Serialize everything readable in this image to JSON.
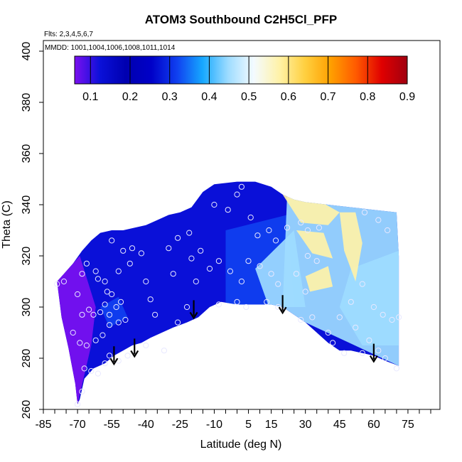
{
  "chart_data": {
    "type": "heatmap",
    "title": "ATOM3 Southbound C2H5Cl_PFP",
    "subtitle_flights": "Flts: 2,3,4,5,6,7",
    "subtitle_dates": "MMDD: 1001,1004,1006,1008,1011,1014",
    "xlabel": "Latitude (deg N)",
    "ylabel": "Theta (C)",
    "xlim": [
      -85,
      85
    ],
    "ylim": [
      260,
      400
    ],
    "x_ticks": [
      -85,
      -70,
      -55,
      -40,
      -25,
      -10,
      5,
      15,
      30,
      45,
      60,
      75
    ],
    "x_tick_labels": [
      "-85",
      "-70",
      "-55",
      "-40",
      "-25",
      "-10",
      "5",
      "15",
      "30",
      "45",
      "60",
      "75"
    ],
    "y_ticks": [
      260,
      280,
      300,
      320,
      340,
      360,
      380,
      400
    ],
    "y_tick_labels": [
      "260",
      "280",
      "300",
      "320",
      "340",
      "360",
      "380",
      "400"
    ],
    "colorbar": {
      "range": [
        0.06,
        0.9
      ],
      "ticks": [
        0.1,
        0.2,
        0.3,
        0.4,
        0.5,
        0.6,
        0.7,
        0.8,
        0.9
      ],
      "tick_labels": [
        "0.1",
        "0.2",
        "0.3",
        "0.4",
        "0.5",
        "0.6",
        "0.7",
        "0.8",
        "0.9"
      ],
      "colors": [
        "#7b10f0",
        "#0a10d8",
        "#0000b0",
        "#0000c8",
        "#1040f0",
        "#16a8ff",
        "#9edcff",
        "#f4fbff",
        "#fff2a8",
        "#ffd040",
        "#ffa000",
        "#ff5a00",
        "#e00000",
        "#a00010"
      ]
    },
    "grid": false,
    "upper_boundary": [
      [
        -79,
        310
      ],
      [
        -76,
        313
      ],
      [
        -72,
        317
      ],
      [
        -68,
        322
      ],
      [
        -64,
        326
      ],
      [
        -60,
        329
      ],
      [
        -55,
        330
      ],
      [
        -50,
        330
      ],
      [
        -45,
        331
      ],
      [
        -40,
        332
      ],
      [
        -35,
        334
      ],
      [
        -30,
        336
      ],
      [
        -25,
        337
      ],
      [
        -20,
        339
      ],
      [
        -15,
        345
      ],
      [
        -10,
        348
      ],
      [
        0,
        349
      ],
      [
        8,
        349
      ],
      [
        15,
        347
      ],
      [
        20,
        344
      ],
      [
        25,
        342
      ],
      [
        30,
        341
      ],
      [
        40,
        340
      ],
      [
        50,
        339
      ],
      [
        60,
        338
      ],
      [
        70,
        337
      ],
      [
        71,
        320
      ],
      [
        71,
        300
      ],
      [
        71,
        280
      ]
    ],
    "lower_boundary": [
      [
        -79,
        310
      ],
      [
        -77,
        296
      ],
      [
        -74,
        284
      ],
      [
        -71,
        270
      ],
      [
        -70,
        262
      ],
      [
        -69,
        264
      ],
      [
        -67,
        272
      ],
      [
        -63,
        276
      ],
      [
        -58,
        278
      ],
      [
        -54,
        281
      ],
      [
        -50,
        283
      ],
      [
        -46,
        285
      ],
      [
        -42,
        286
      ],
      [
        -38,
        288
      ],
      [
        -33,
        290
      ],
      [
        -28,
        292
      ],
      [
        -22,
        294
      ],
      [
        -17,
        296
      ],
      [
        -12,
        300
      ],
      [
        -7,
        302
      ],
      [
        0,
        301
      ],
      [
        8,
        301
      ],
      [
        15,
        301
      ],
      [
        20,
        300
      ],
      [
        25,
        297
      ],
      [
        30,
        294
      ],
      [
        35,
        290
      ],
      [
        40,
        286
      ],
      [
        45,
        283
      ],
      [
        50,
        283
      ],
      [
        55,
        282
      ],
      [
        60,
        281
      ],
      [
        65,
        279
      ],
      [
        71,
        277
      ]
    ],
    "arrows": [
      {
        "lat": -54,
        "theta": 278
      },
      {
        "lat": -45,
        "theta": 281
      },
      {
        "lat": -19,
        "theta": 296
      },
      {
        "lat": 20,
        "theta": 298
      },
      {
        "lat": 60,
        "theta": 279
      }
    ],
    "field_regions": [
      {
        "name": "south-purple",
        "value": 0.07,
        "points": [
          [
            -79,
            310
          ],
          [
            -69,
            320
          ],
          [
            -62,
            300
          ],
          [
            -64,
            285
          ],
          [
            -70,
            262
          ],
          [
            -74,
            284
          ],
          [
            -77,
            296
          ]
        ]
      },
      {
        "name": "south-blue-streak",
        "value": 0.33,
        "points": [
          [
            -60,
            300
          ],
          [
            -52,
            304
          ],
          [
            -48,
            296
          ],
          [
            -56,
            292
          ]
        ]
      },
      {
        "name": "tropics-blue",
        "value": 0.33,
        "points": [
          [
            -5,
            330
          ],
          [
            22,
            336
          ],
          [
            25,
            300
          ],
          [
            0,
            301
          ],
          [
            -5,
            301
          ]
        ]
      },
      {
        "name": "tropics-light",
        "value": 0.42,
        "points": [
          [
            8,
            315
          ],
          [
            25,
            330
          ],
          [
            30,
            300
          ],
          [
            14,
            300
          ]
        ]
      },
      {
        "name": "north-light",
        "value": 0.42,
        "points": [
          [
            22,
            344
          ],
          [
            71,
            337
          ],
          [
            71,
            277
          ],
          [
            30,
            294
          ],
          [
            20,
            300
          ]
        ]
      },
      {
        "name": "north-bright",
        "value": 0.48,
        "points": [
          [
            50,
            315
          ],
          [
            71,
            322
          ],
          [
            71,
            285
          ],
          [
            55,
            285
          ],
          [
            45,
            300
          ]
        ]
      },
      {
        "name": "north-yellow-top",
        "value": 0.58,
        "points": [
          [
            20,
            344
          ],
          [
            35,
            342
          ],
          [
            45,
            337
          ],
          [
            40,
            332
          ],
          [
            28,
            333
          ]
        ]
      },
      {
        "name": "north-yellow-band-1",
        "value": 0.58,
        "points": [
          [
            26,
            330
          ],
          [
            38,
            329
          ],
          [
            42,
            319
          ],
          [
            33,
            321
          ]
        ]
      },
      {
        "name": "north-yellow-band-2",
        "value": 0.58,
        "points": [
          [
            30,
            312
          ],
          [
            40,
            316
          ],
          [
            42,
            308
          ],
          [
            32,
            306
          ]
        ]
      },
      {
        "name": "north-yellow-column",
        "value": 0.6,
        "points": [
          [
            45,
            337
          ],
          [
            52,
            337
          ],
          [
            55,
            325
          ],
          [
            52,
            310
          ],
          [
            47,
            322
          ]
        ]
      }
    ],
    "observations": [
      [
        -79,
        309
      ],
      [
        -76,
        310
      ],
      [
        -70,
        305
      ],
      [
        -68,
        313
      ],
      [
        -66,
        317
      ],
      [
        -62,
        314
      ],
      [
        -61,
        311
      ],
      [
        -58,
        310
      ],
      [
        -57,
        306
      ],
      [
        -65,
        299
      ],
      [
        -68,
        297
      ],
      [
        -63,
        297
      ],
      [
        -60,
        298
      ],
      [
        -56,
        297
      ],
      [
        -53,
        300
      ],
      [
        -51,
        302
      ],
      [
        -58,
        301
      ],
      [
        -55,
        305
      ],
      [
        -72,
        290
      ],
      [
        -69,
        286
      ],
      [
        -66,
        285
      ],
      [
        -62,
        287
      ],
      [
        -59,
        289
      ],
      [
        -56,
        293
      ],
      [
        -52,
        294
      ],
      [
        -49,
        295
      ],
      [
        -67,
        276
      ],
      [
        -64,
        275
      ],
      [
        -61,
        274
      ],
      [
        -58,
        278
      ],
      [
        -56,
        281
      ],
      [
        -52,
        279
      ],
      [
        -48,
        281
      ],
      [
        -68,
        267
      ],
      [
        -70,
        262
      ],
      [
        -55,
        326
      ],
      [
        -50,
        322
      ],
      [
        -46,
        323
      ],
      [
        -42,
        321
      ],
      [
        -47,
        317
      ],
      [
        -52,
        314
      ],
      [
        -40,
        310
      ],
      [
        -38,
        303
      ],
      [
        -36,
        297
      ],
      [
        -30,
        323
      ],
      [
        -26,
        327
      ],
      [
        -21,
        329
      ],
      [
        -16,
        322
      ],
      [
        -12,
        315
      ],
      [
        -8,
        318
      ],
      [
        -18,
        310
      ],
      [
        -22,
        300
      ],
      [
        -26,
        294
      ],
      [
        -28,
        313
      ],
      [
        -20,
        319
      ],
      [
        -10,
        340
      ],
      [
        -4,
        338
      ],
      [
        0,
        344
      ],
      [
        2,
        347
      ],
      [
        6,
        335
      ],
      [
        9,
        328
      ],
      [
        14,
        330
      ],
      [
        17,
        326
      ],
      [
        -3,
        314
      ],
      [
        2,
        310
      ],
      [
        5,
        318
      ],
      [
        10,
        316
      ],
      [
        15,
        313
      ],
      [
        18,
        309
      ],
      [
        -8,
        301
      ],
      [
        0,
        302
      ],
      [
        4,
        300
      ],
      [
        13,
        302
      ],
      [
        18,
        300
      ],
      [
        22,
        331
      ],
      [
        28,
        333
      ],
      [
        31,
        330
      ],
      [
        36,
        331
      ],
      [
        31,
        320
      ],
      [
        35,
        318
      ],
      [
        26,
        313
      ],
      [
        30,
        306
      ],
      [
        33,
        296
      ],
      [
        28,
        295
      ],
      [
        40,
        290
      ],
      [
        45,
        296
      ],
      [
        50,
        302
      ],
      [
        55,
        309
      ],
      [
        60,
        300
      ],
      [
        64,
        297
      ],
      [
        68,
        295
      ],
      [
        52,
        292
      ],
      [
        58,
        287
      ],
      [
        62,
        283
      ],
      [
        42,
        286
      ],
      [
        47,
        282
      ],
      [
        55,
        282
      ],
      [
        65,
        280
      ],
      [
        70,
        276
      ],
      [
        56,
        337
      ],
      [
        62,
        334
      ],
      [
        66,
        330
      ],
      [
        71,
        296
      ],
      [
        -32,
        283
      ],
      [
        -40,
        285
      ]
    ]
  }
}
